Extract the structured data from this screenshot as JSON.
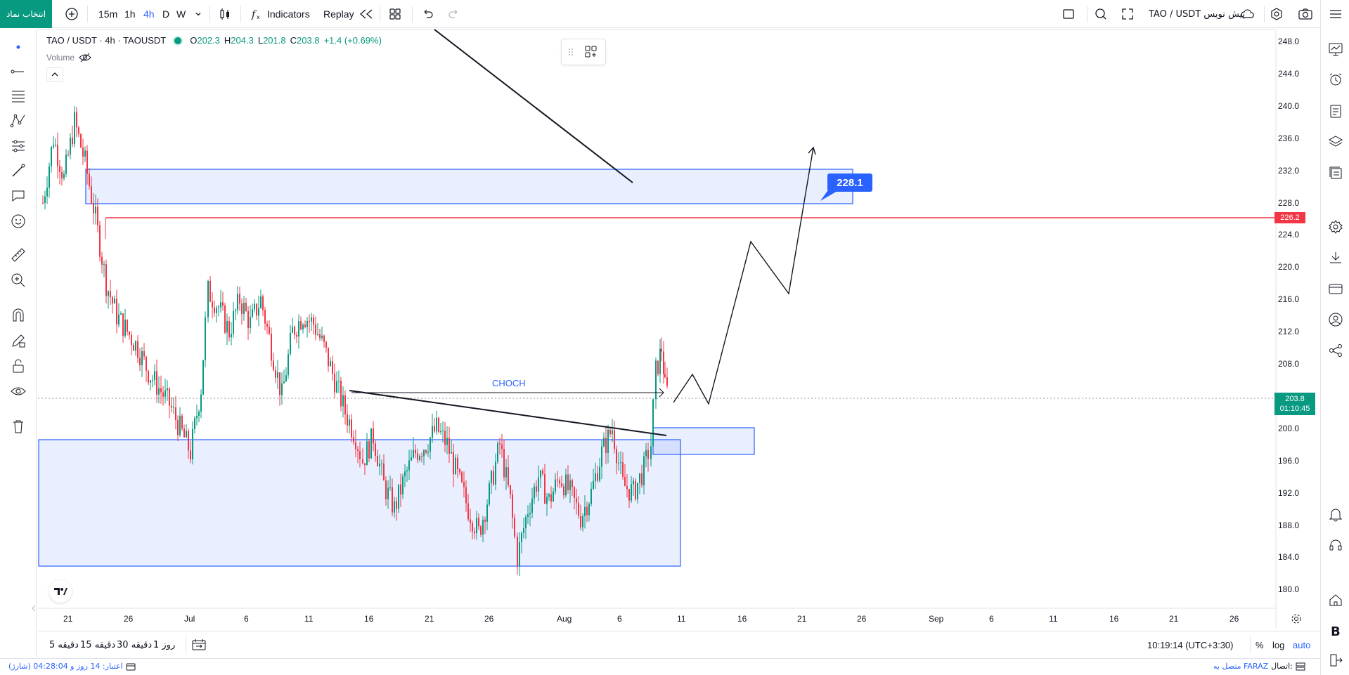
{
  "topbar": {
    "symbol_button": "انتخاب نماد",
    "intervals": [
      "15m",
      "1h",
      "4h",
      "D",
      "W"
    ],
    "active_interval": "4h",
    "indicators_label": "Indicators",
    "replay_label": "Replay",
    "layout_title": "TAO / USDT پیش نویس"
  },
  "legend": {
    "symbol": "TAO / USDT · 4h · TAOUSDT",
    "open_label": "O",
    "open": "202.3",
    "high_label": "H",
    "high": "204.3",
    "low_label": "L",
    "low": "201.8",
    "close_label": "C",
    "close": "203.8",
    "change": "+1.4 (+0.69%)",
    "volume_label": "Volume"
  },
  "chart_data": {
    "type": "candlestick",
    "price_ticks": [
      "248.0",
      "244.0",
      "240.0",
      "236.0",
      "232.0",
      "228.0",
      "224.0",
      "220.0",
      "216.0",
      "212.0",
      "208.0",
      "204.0",
      "200.0",
      "196.0",
      "192.0",
      "188.0",
      "184.0",
      "180.0"
    ],
    "ylim": [
      178,
      250
    ],
    "time_ticks": [
      "21",
      "26",
      "Jul",
      "6",
      "11",
      "16",
      "21",
      "26",
      "Aug",
      "6",
      "11",
      "16",
      "21",
      "26",
      "Sep",
      "6",
      "11",
      "16",
      "21",
      "26"
    ],
    "current_price": "203.8",
    "countdown": "01:10:45",
    "horizontal_line_price": "226.2",
    "target_label": "228.1",
    "annotation": "CHOCH",
    "colors": {
      "up": "#089981",
      "down": "#f23645",
      "zone": "#2962ff",
      "line": "#f23645"
    }
  },
  "bottombar": {
    "ranges": [
      "5 دقیقه",
      "15 دقیقه",
      "30 دقیقه",
      "1 روز"
    ],
    "time": "10:19:14 (UTC+3:30)",
    "percent": "%",
    "log": "log",
    "auto": "auto"
  },
  "statusbar": {
    "credit": "اعتبار: 14 روز و 04:28:04 (شارژ)",
    "connection_label": "اتصال:",
    "connection_value": "متصل به FARAZ"
  }
}
